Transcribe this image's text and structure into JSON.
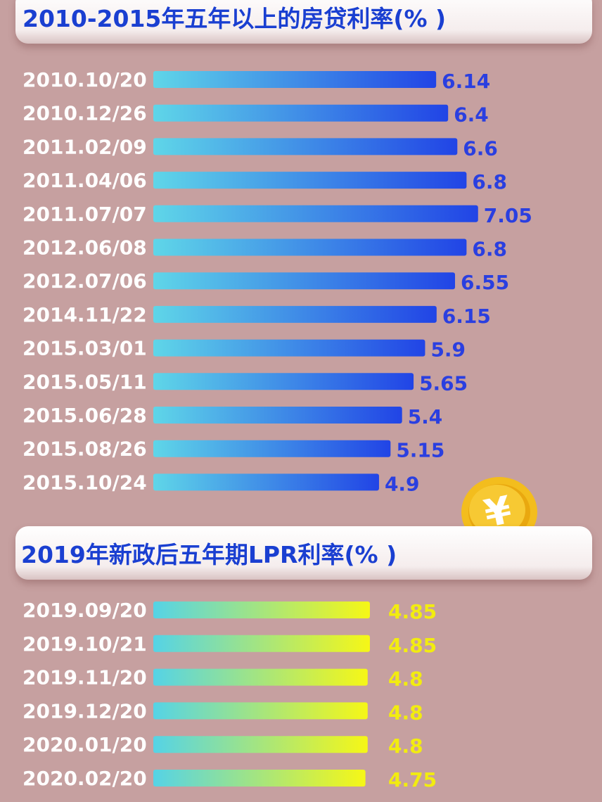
{
  "chart_data": [
    {
      "type": "bar",
      "orientation": "horizontal",
      "title": "2010-2015年五年以上的房贷利率(% )",
      "categories": [
        "2010.10/20",
        "2010.12/26",
        "2011.02/09",
        "2011.04/06",
        "2011.07/07",
        "2012.06/08",
        "2012.07/06",
        "2014.11/22",
        "2015.03/01",
        "2015.05/11",
        "2015.06/28",
        "2015.08/26",
        "2015.10/24"
      ],
      "values": [
        6.14,
        6.4,
        6.6,
        6.8,
        7.05,
        6.8,
        6.55,
        6.15,
        5.9,
        5.65,
        5.4,
        5.15,
        4.9
      ],
      "value_labels": [
        "6.14",
        "6.4",
        "6.6",
        "6.8",
        "7.05",
        "6.8",
        "6.55",
        "6.15",
        "5.9",
        "5.65",
        "5.4",
        "5.15",
        "4.9"
      ],
      "bar_gradient": [
        "#5fd6e8",
        "#2144e6"
      ],
      "value_color": "#2a3fe0"
    },
    {
      "type": "bar",
      "orientation": "horizontal",
      "title": "2019年新政后五年期LPR利率(% )",
      "categories": [
        "2019.09/20",
        "2019.10/21",
        "2019.11/20",
        "2019.12/20",
        "2020.01/20",
        "2020.02/20"
      ],
      "values": [
        4.85,
        4.85,
        4.8,
        4.8,
        4.8,
        4.75
      ],
      "value_labels": [
        "4.85",
        "4.85",
        "4.8",
        "4.8",
        "4.8",
        "4.75"
      ],
      "bar_gradient": [
        "#55d3e6",
        "#f6f716"
      ],
      "value_color": "#f2ec10"
    }
  ],
  "decoration": {
    "coin_icon": "yuan-coin-icon",
    "coin_color": "#f3bd1d"
  }
}
